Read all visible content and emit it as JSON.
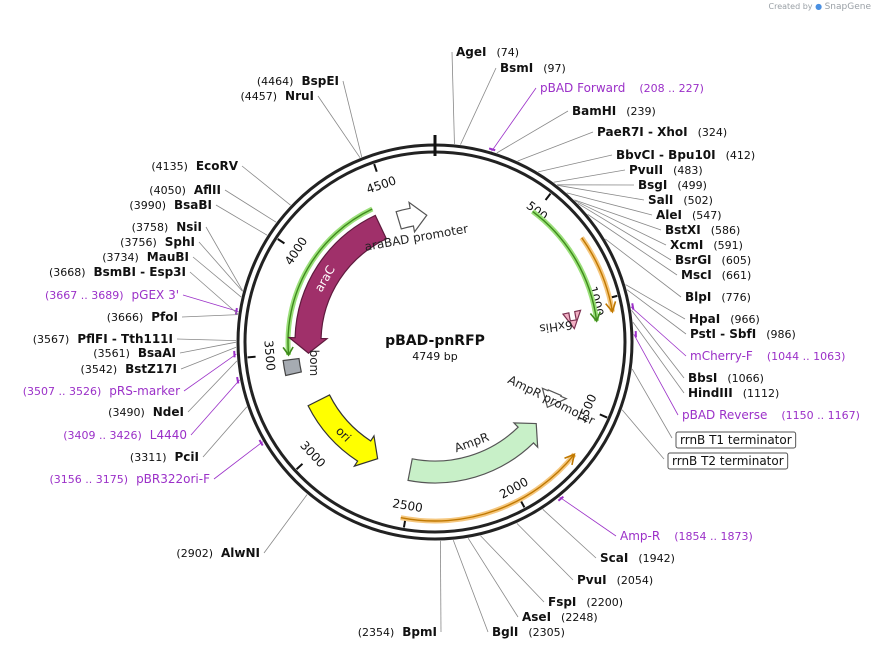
{
  "watermark": {
    "prefix": "Created by",
    "brand": "SnapGene"
  },
  "plasmid": {
    "name": "pBAD-pnRFP",
    "size": 4749,
    "size_label": "4749 bp"
  },
  "ticks": [
    {
      "label": "500",
      "bp": 500
    },
    {
      "label": "1000",
      "bp": 1000
    },
    {
      "label": "1500",
      "bp": 1500
    },
    {
      "label": "2000",
      "bp": 2000
    },
    {
      "label": "2500",
      "bp": 2500
    },
    {
      "label": "3000",
      "bp": 3000
    },
    {
      "label": "3500",
      "bp": 3500
    },
    {
      "label": "4000",
      "bp": 4000
    },
    {
      "label": "4500",
      "bp": 4500
    }
  ],
  "features": [
    {
      "name": "araC",
      "start": 3495,
      "end": 4416,
      "dir": "ccw",
      "color": "#a0306a",
      "stroke": "#5e1a3d",
      "label_color": "#ffffff",
      "label_on": "arrow"
    },
    {
      "name": "araBAD promoter",
      "start": 4530,
      "end": 4700,
      "dir": "cw",
      "color": "#ffffff",
      "stroke": "#555555",
      "label_color": "#222222",
      "label_on": "inside"
    },
    {
      "name": "6xHis",
      "start": 1070,
      "end": 1115,
      "dir": "cw",
      "color": "#f2b0c4",
      "stroke": "#7a3050",
      "label_color": "#222222",
      "label_on": "inside"
    },
    {
      "name": "AmpR promoter",
      "start": 1490,
      "end": 1585,
      "dir": "cw",
      "color": "#ffffff",
      "stroke": "#555555",
      "label_color": "#222222",
      "label_on": "inside"
    },
    {
      "name": "AmpR",
      "start": 1700,
      "end": 2520,
      "dir": "ccw",
      "color": "#c8f0c8",
      "stroke": "#555555",
      "label_color": "#222222",
      "label_on": "inside"
    },
    {
      "name": "ori",
      "start": 2720,
      "end": 3210,
      "dir": "ccw",
      "color": "#ffff00",
      "stroke": "#333333",
      "label_color": "#222222",
      "label_on": "arrow"
    },
    {
      "name": "bom",
      "start": 3395,
      "end": 3470,
      "dir": "none",
      "color": "#a6abb2",
      "stroke": "#444444",
      "label_color": "#222222",
      "label_on": "inside"
    }
  ],
  "thin_arcs": [
    {
      "name": "araC outline",
      "start": 3495,
      "end": 4416,
      "dir": "ccw",
      "color": "#9be07a",
      "stroke": "#3f8a1c",
      "r": 147
    },
    {
      "name": "pnRFP outline",
      "start": 485,
      "end": 1090,
      "dir": "cw",
      "color": "#9be07a",
      "stroke": "#3f8a1c",
      "r": 163
    },
    {
      "name": "6xHis region",
      "start": 720,
      "end": 1060,
      "dir": "cw",
      "color": "#f5c77e",
      "stroke": "#c07800",
      "r": 180
    },
    {
      "name": "AmpR outline",
      "start": 1700,
      "end": 2520,
      "dir": "ccw",
      "color": "#f5c77e",
      "stroke": "#c07800",
      "r": 179
    }
  ],
  "sites": [
    {
      "name": "AgeI",
      "pos": "74",
      "bp": 74,
      "side": "right",
      "kind": "enzyme"
    },
    {
      "name": "BsmI",
      "pos": "97",
      "bp": 97,
      "side": "right",
      "kind": "enzyme"
    },
    {
      "name": "pBAD Forward",
      "pos": "208 .. 227",
      "bp": 218,
      "side": "right",
      "kind": "primer"
    },
    {
      "name": "BamHI",
      "pos": "239",
      "bp": 239,
      "side": "right",
      "kind": "enzyme"
    },
    {
      "name": "PaeR7I",
      "name2": "XhoI",
      "pos": "324",
      "bp": 324,
      "side": "right",
      "kind": "enzyme"
    },
    {
      "name": "BbvCI",
      "name2": "Bpu10I",
      "pos": "412",
      "bp": 412,
      "side": "right",
      "kind": "enzyme"
    },
    {
      "name": "PvuII",
      "pos": "483",
      "bp": 483,
      "side": "right",
      "kind": "enzyme"
    },
    {
      "name": "BsgI",
      "pos": "499",
      "bp": 499,
      "side": "right",
      "kind": "enzyme"
    },
    {
      "name": "SalI",
      "pos": "502",
      "bp": 502,
      "side": "right",
      "kind": "enzyme"
    },
    {
      "name": "AleI",
      "pos": "547",
      "bp": 547,
      "side": "right",
      "kind": "enzyme"
    },
    {
      "name": "BstXI",
      "pos": "586",
      "bp": 586,
      "side": "right",
      "kind": "enzyme"
    },
    {
      "name": "XcmI",
      "pos": "591",
      "bp": 591,
      "side": "right",
      "kind": "enzyme"
    },
    {
      "name": "BsrGI",
      "pos": "605",
      "bp": 605,
      "side": "right",
      "kind": "enzyme"
    },
    {
      "name": "MscI",
      "pos": "661",
      "bp": 661,
      "side": "right",
      "kind": "enzyme"
    },
    {
      "name": "BlpI",
      "pos": "776",
      "bp": 776,
      "side": "right",
      "kind": "enzyme"
    },
    {
      "name": "HpaI",
      "pos": "966",
      "bp": 966,
      "side": "right",
      "kind": "enzyme"
    },
    {
      "name": "PstI",
      "name2": "SbfI",
      "pos": "986",
      "bp": 986,
      "side": "right",
      "kind": "enzyme"
    },
    {
      "name": "mCherry-F",
      "pos": "1044 .. 1063",
      "bp": 1053,
      "side": "right",
      "kind": "primer"
    },
    {
      "name": "BbsI",
      "pos": "1066",
      "bp": 1066,
      "side": "right",
      "kind": "enzyme"
    },
    {
      "name": "HindIII",
      "pos": "1112",
      "bp": 1112,
      "side": "right",
      "kind": "enzyme"
    },
    {
      "name": "pBAD Reverse",
      "pos": "1150 .. 1167",
      "bp": 1158,
      "side": "right",
      "kind": "primer"
    },
    {
      "name": "rrnB T1 terminator",
      "bp": 1290,
      "side": "right",
      "kind": "terminator"
    },
    {
      "name": "rrnB T2 terminator",
      "bp": 1450,
      "side": "right",
      "kind": "terminator"
    },
    {
      "name": "Amp-R",
      "pos": "1854 .. 1873",
      "bp": 1863,
      "side": "right",
      "kind": "primer"
    },
    {
      "name": "ScaI",
      "pos": "1942",
      "bp": 1942,
      "side": "right",
      "kind": "enzyme"
    },
    {
      "name": "PvuI",
      "pos": "2054",
      "bp": 2054,
      "side": "right",
      "kind": "enzyme"
    },
    {
      "name": "FspI",
      "pos": "2200",
      "bp": 2200,
      "side": "right",
      "kind": "enzyme"
    },
    {
      "name": "AseI",
      "pos": "2248",
      "bp": 2248,
      "side": "right",
      "kind": "enzyme"
    },
    {
      "name": "BglI",
      "pos": "2305",
      "bp": 2305,
      "side": "right",
      "kind": "enzyme"
    },
    {
      "name": "BpmI",
      "pos": "2354",
      "bp": 2354,
      "side": "left",
      "kind": "enzyme"
    },
    {
      "name": "AlwNI",
      "pos": "2902",
      "bp": 2902,
      "side": "left",
      "kind": "enzyme"
    },
    {
      "name": "pBR322ori-F",
      "pos": "3156 .. 3175",
      "bp": 3165,
      "side": "left",
      "kind": "primer"
    },
    {
      "name": "PciI",
      "pos": "3311",
      "bp": 3311,
      "side": "left",
      "kind": "enzyme"
    },
    {
      "name": "L4440",
      "pos": "3409 .. 3426",
      "bp": 3417,
      "side": "left",
      "kind": "primer"
    },
    {
      "name": "NdeI",
      "pos": "3490",
      "bp": 3490,
      "side": "left",
      "kind": "enzyme"
    },
    {
      "name": "pRS-marker",
      "pos": "3507 .. 3526",
      "bp": 3516,
      "side": "left",
      "kind": "primer"
    },
    {
      "name": "BstZ17I",
      "pos": "3542",
      "bp": 3542,
      "side": "left",
      "kind": "enzyme"
    },
    {
      "name": "BsaAI",
      "pos": "3561",
      "bp": 3561,
      "side": "left",
      "kind": "enzyme"
    },
    {
      "name": "PflFI",
      "name2": "Tth111I",
      "pos": "3567",
      "bp": 3567,
      "side": "left",
      "kind": "enzyme"
    },
    {
      "name": "PfoI",
      "pos": "3666",
      "bp": 3666,
      "side": "left",
      "kind": "enzyme"
    },
    {
      "name": "pGEX 3'",
      "pos": "3667 .. 3689",
      "bp": 3678,
      "side": "left",
      "kind": "primer"
    },
    {
      "name": "BsmBI",
      "name2": "Esp3I",
      "pos": "3668",
      "bp": 3668,
      "side": "left",
      "kind": "enzyme"
    },
    {
      "name": "MauBI",
      "pos": "3734",
      "bp": 3734,
      "side": "left",
      "kind": "enzyme"
    },
    {
      "name": "SphI",
      "pos": "3756",
      "bp": 3756,
      "side": "left",
      "kind": "enzyme"
    },
    {
      "name": "NsiI",
      "pos": "3758",
      "bp": 3758,
      "side": "left",
      "kind": "enzyme"
    },
    {
      "name": "BsaBI",
      "pos": "3990",
      "bp": 3990,
      "side": "left",
      "kind": "enzyme"
    },
    {
      "name": "AflII",
      "pos": "4050",
      "bp": 4050,
      "side": "left",
      "kind": "enzyme"
    },
    {
      "name": "EcoRV",
      "pos": "4135",
      "bp": 4135,
      "side": "left",
      "kind": "enzyme"
    },
    {
      "name": "NruI",
      "pos": "4457",
      "bp": 4457,
      "side": "left",
      "kind": "enzyme"
    },
    {
      "name": "BspEI",
      "pos": "4464",
      "bp": 4464,
      "side": "left",
      "kind": "enzyme"
    }
  ]
}
